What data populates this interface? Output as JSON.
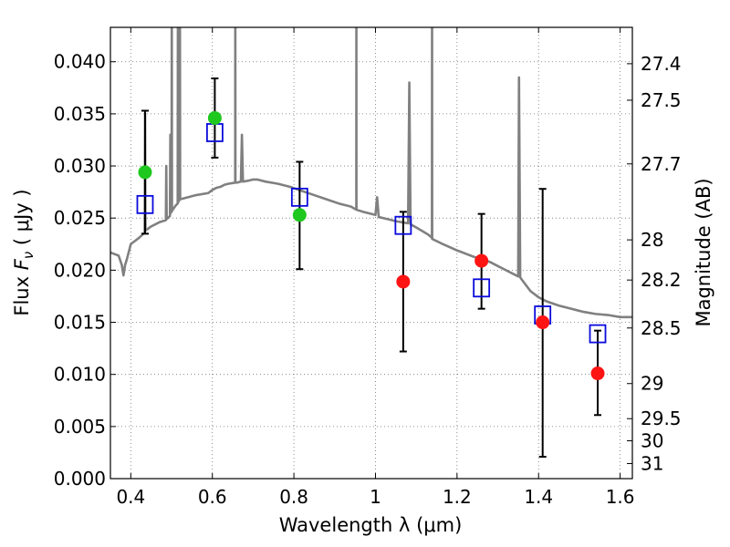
{
  "chart_data": {
    "type": "scatter",
    "xlabel": "Wavelength  λ (μm)",
    "ylabel": "Flux  F_ν  ( μJy )",
    "ylabel_prefix": "Flux  ",
    "ylabel_symbol": "F",
    "ylabel_sub": "ν",
    "ylabel_suffix": "  ( μJy )",
    "y2label": "Magnitude (AB)",
    "xlim": [
      0.35,
      1.63
    ],
    "ylim": [
      0.0,
      0.0433
    ],
    "grid": true,
    "x_ticks": [
      {
        "v": 0.4,
        "label": "0.4"
      },
      {
        "v": 0.6,
        "label": "0.6"
      },
      {
        "v": 0.8,
        "label": "0.8"
      },
      {
        "v": 1.0,
        "label": "1"
      },
      {
        "v": 1.2,
        "label": "1.2"
      },
      {
        "v": 1.4,
        "label": "1.4"
      },
      {
        "v": 1.6,
        "label": "1.6"
      }
    ],
    "y_ticks": [
      {
        "v": 0.0,
        "label": "0.000"
      },
      {
        "v": 0.005,
        "label": "0.005"
      },
      {
        "v": 0.01,
        "label": "0.010"
      },
      {
        "v": 0.015,
        "label": "0.015"
      },
      {
        "v": 0.02,
        "label": "0.020"
      },
      {
        "v": 0.025,
        "label": "0.025"
      },
      {
        "v": 0.03,
        "label": "0.030"
      },
      {
        "v": 0.035,
        "label": "0.035"
      },
      {
        "v": 0.04,
        "label": "0.040"
      }
    ],
    "mag_ticks": [
      {
        "mag": 27.4,
        "label": "27.4"
      },
      {
        "mag": 27.5,
        "label": "27.5"
      },
      {
        "mag": 27.7,
        "label": "27.7"
      },
      {
        "mag": 28.0,
        "label": "28"
      },
      {
        "mag": 28.2,
        "label": "28.2"
      },
      {
        "mag": 28.5,
        "label": "28.5"
      },
      {
        "mag": 29.0,
        "label": "29"
      },
      {
        "mag": 29.5,
        "label": "29.5"
      },
      {
        "mag": 30.0,
        "label": "30"
      },
      {
        "mag": 31.0,
        "label": "31"
      }
    ],
    "colors": {
      "model": "#808080",
      "green": "#1ec81e",
      "red": "#ff1414",
      "box": "#0a0adc",
      "errorbar": "#000000"
    },
    "observed_points": [
      {
        "x": 0.435,
        "y": 0.0294,
        "yerr_low": 0.0235,
        "yerr_high": 0.0353,
        "color": "green"
      },
      {
        "x": 0.606,
        "y": 0.0346,
        "yerr_low": 0.0308,
        "yerr_high": 0.0384,
        "color": "green"
      },
      {
        "x": 0.814,
        "y": 0.0253,
        "yerr_low": 0.0201,
        "yerr_high": 0.0304,
        "color": "green"
      },
      {
        "x": 1.068,
        "y": 0.0189,
        "yerr_low": 0.0122,
        "yerr_high": 0.0256,
        "color": "red"
      },
      {
        "x": 1.26,
        "y": 0.0209,
        "yerr_low": 0.0163,
        "yerr_high": 0.0254,
        "color": "red"
      },
      {
        "x": 1.41,
        "y": 0.015,
        "yerr_low": 0.0021,
        "yerr_high": 0.0278,
        "color": "red"
      },
      {
        "x": 1.545,
        "y": 0.0101,
        "yerr_low": 0.0061,
        "yerr_high": 0.0142,
        "color": "red"
      }
    ],
    "model_points": [
      {
        "x": 0.435,
        "y": 0.0263
      },
      {
        "x": 0.606,
        "y": 0.0332
      },
      {
        "x": 0.814,
        "y": 0.027
      },
      {
        "x": 1.068,
        "y": 0.0243
      },
      {
        "x": 1.26,
        "y": 0.0183
      },
      {
        "x": 1.41,
        "y": 0.0157
      },
      {
        "x": 1.545,
        "y": 0.0139
      }
    ],
    "model_spectrum": [
      [
        0.35,
        0.0217
      ],
      [
        0.37,
        0.0214
      ],
      [
        0.378,
        0.0205
      ],
      [
        0.382,
        0.0195
      ],
      [
        0.386,
        0.0205
      ],
      [
        0.39,
        0.021
      ],
      [
        0.4,
        0.0225
      ],
      [
        0.41,
        0.0228
      ],
      [
        0.42,
        0.0231
      ],
      [
        0.434,
        0.0236
      ],
      [
        0.435,
        0.035
      ],
      [
        0.436,
        0.0238
      ],
      [
        0.45,
        0.0242
      ],
      [
        0.47,
        0.0246
      ],
      [
        0.486,
        0.0248
      ],
      [
        0.487,
        0.03
      ],
      [
        0.488,
        0.0249
      ],
      [
        0.496,
        0.0252
      ],
      [
        0.497,
        0.033
      ],
      [
        0.498,
        0.0255
      ],
      [
        0.5,
        0.0256
      ],
      [
        0.5005,
        0.045
      ],
      [
        0.501,
        0.0257
      ],
      [
        0.51,
        0.0262
      ],
      [
        0.515,
        0.0264
      ],
      [
        0.5155,
        0.045
      ],
      [
        0.516,
        0.0265
      ],
      [
        0.52,
        0.0268
      ],
      [
        0.5205,
        0.045
      ],
      [
        0.521,
        0.0268
      ],
      [
        0.54,
        0.027
      ],
      [
        0.56,
        0.0272
      ],
      [
        0.59,
        0.0274
      ],
      [
        0.6,
        0.0277
      ],
      [
        0.61,
        0.0279
      ],
      [
        0.62,
        0.028
      ],
      [
        0.63,
        0.0282
      ],
      [
        0.64,
        0.0283
      ],
      [
        0.656,
        0.0284
      ],
      [
        0.6563,
        0.045
      ],
      [
        0.6566,
        0.0284
      ],
      [
        0.66,
        0.0284
      ],
      [
        0.67,
        0.0285
      ],
      [
        0.6725,
        0.033
      ],
      [
        0.675,
        0.0285
      ],
      [
        0.69,
        0.0286
      ],
      [
        0.7,
        0.0287
      ],
      [
        0.71,
        0.0287
      ],
      [
        0.73,
        0.0285
      ],
      [
        0.76,
        0.0283
      ],
      [
        0.79,
        0.028
      ],
      [
        0.82,
        0.0276
      ],
      [
        0.85,
        0.0272
      ],
      [
        0.88,
        0.0268
      ],
      [
        0.91,
        0.0264
      ],
      [
        0.94,
        0.0261
      ],
      [
        0.953,
        0.0258
      ],
      [
        0.9532,
        0.045
      ],
      [
        0.9534,
        0.0258
      ],
      [
        0.97,
        0.0256
      ],
      [
        1.0,
        0.0253
      ],
      [
        1.004,
        0.027
      ],
      [
        1.008,
        0.0251
      ],
      [
        1.03,
        0.0249
      ],
      [
        1.05,
        0.0247
      ],
      [
        1.08,
        0.0245
      ],
      [
        1.083,
        0.038
      ],
      [
        1.086,
        0.0244
      ],
      [
        1.1,
        0.0241
      ],
      [
        1.13,
        0.0234
      ],
      [
        1.1385,
        0.0231
      ],
      [
        1.1388,
        0.045
      ],
      [
        1.1391,
        0.023
      ],
      [
        1.16,
        0.0226
      ],
      [
        1.2,
        0.0219
      ],
      [
        1.24,
        0.0213
      ],
      [
        1.28,
        0.0208
      ],
      [
        1.3,
        0.0204
      ],
      [
        1.32,
        0.02
      ],
      [
        1.34,
        0.0196
      ],
      [
        1.35,
        0.0194
      ],
      [
        1.352,
        0.0385
      ],
      [
        1.355,
        0.0193
      ],
      [
        1.38,
        0.018
      ],
      [
        1.4,
        0.0174
      ],
      [
        1.42,
        0.017
      ],
      [
        1.45,
        0.0166
      ],
      [
        1.48,
        0.0163
      ],
      [
        1.51,
        0.016
      ],
      [
        1.54,
        0.0158
      ],
      [
        1.57,
        0.0157
      ],
      [
        1.6,
        0.0155
      ],
      [
        1.63,
        0.0155
      ]
    ]
  }
}
